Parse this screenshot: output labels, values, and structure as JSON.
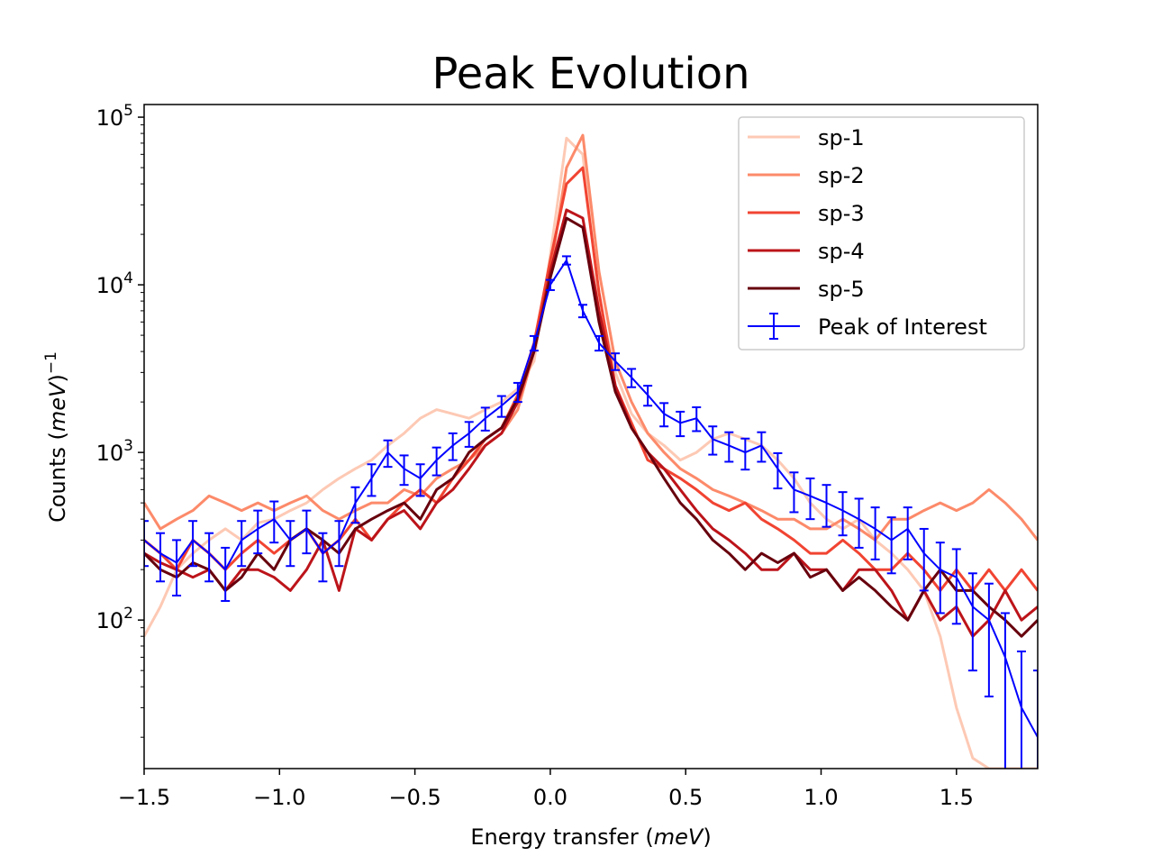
{
  "chart_data": {
    "type": "line",
    "title": "Peak Evolution",
    "xlabel": "Energy transfer (meV)",
    "ylabel": "Counts (meV)^-1",
    "xlim": [
      -1.5,
      1.8
    ],
    "ylim": [
      13,
      119000
    ],
    "yscale": "log",
    "grid": false,
    "legend_placement": "top-right",
    "x_ticks": [
      -1.5,
      -1.0,
      -0.5,
      0.0,
      0.5,
      1.0,
      1.5
    ],
    "x_tick_labels": [
      "−1.5",
      "−1.0",
      "−0.5",
      "0.0",
      "0.5",
      "1.0",
      "1.5"
    ],
    "y_ticks": [
      100,
      1000,
      10000,
      100000
    ],
    "y_tick_labels": [
      {
        "base": "10",
        "exp": "2"
      },
      {
        "base": "10",
        "exp": "3"
      },
      {
        "base": "10",
        "exp": "4"
      },
      {
        "base": "10",
        "exp": "5"
      }
    ],
    "x": [
      -1.5,
      -1.44,
      -1.38,
      -1.32,
      -1.26,
      -1.2,
      -1.14,
      -1.08,
      -1.02,
      -0.96,
      -0.9,
      -0.84,
      -0.78,
      -0.72,
      -0.66,
      -0.6,
      -0.54,
      -0.48,
      -0.42,
      -0.36,
      -0.3,
      -0.24,
      -0.18,
      -0.12,
      -0.06,
      0,
      0.06,
      0.12,
      0.18,
      0.24,
      0.3,
      0.36,
      0.42,
      0.48,
      0.54,
      0.6,
      0.66,
      0.72,
      0.78,
      0.84,
      0.9,
      0.96,
      1.02,
      1.08,
      1.14,
      1.2,
      1.26,
      1.32,
      1.38,
      1.44,
      1.5,
      1.56,
      1.62,
      1.68,
      1.74,
      1.8
    ],
    "series": [
      {
        "name": "sp-1",
        "color": "#fdc9b4",
        "values": [
          80,
          120,
          200,
          250,
          300,
          350,
          300,
          380,
          400,
          450,
          500,
          600,
          700,
          800,
          900,
          1100,
          1300,
          1600,
          1800,
          1700,
          1600,
          1800,
          2000,
          2400,
          3500,
          15000,
          75000,
          60000,
          8000,
          3000,
          1700,
          1300,
          1100,
          900,
          1000,
          1200,
          1300,
          1200,
          1100,
          900,
          700,
          500,
          400,
          350,
          400,
          300,
          250,
          200,
          150,
          80,
          30,
          15,
          12,
          12,
          12,
          12
        ]
      },
      {
        "name": "sp-2",
        "color": "#fc8a6a",
        "values": [
          500,
          350,
          400,
          450,
          550,
          500,
          450,
          500,
          450,
          500,
          550,
          450,
          400,
          450,
          500,
          500,
          600,
          550,
          700,
          800,
          900,
          1100,
          1300,
          1800,
          4000,
          12000,
          50000,
          78000,
          12000,
          3500,
          2000,
          1300,
          1000,
          800,
          700,
          600,
          550,
          500,
          450,
          400,
          400,
          350,
          350,
          400,
          350,
          300,
          400,
          400,
          450,
          500,
          450,
          500,
          600,
          500,
          400,
          300
        ]
      },
      {
        "name": "sp-3",
        "color": "#f14432",
        "values": [
          300,
          250,
          200,
          300,
          250,
          200,
          250,
          300,
          250,
          300,
          350,
          250,
          300,
          400,
          300,
          400,
          500,
          600,
          500,
          700,
          900,
          1200,
          1400,
          2200,
          4500,
          14000,
          40000,
          50000,
          9000,
          2500,
          1500,
          900,
          800,
          700,
          600,
          500,
          450,
          500,
          400,
          350,
          300,
          250,
          250,
          300,
          250,
          200,
          200,
          250,
          200,
          150,
          200,
          150,
          200,
          150,
          200,
          150
        ]
      },
      {
        "name": "sp-4",
        "color": "#bc141a",
        "values": [
          250,
          220,
          200,
          180,
          200,
          150,
          200,
          200,
          180,
          150,
          200,
          300,
          150,
          350,
          300,
          400,
          450,
          350,
          500,
          600,
          800,
          1100,
          1300,
          2000,
          4000,
          12000,
          28000,
          25000,
          7000,
          2500,
          1400,
          1000,
          800,
          600,
          450,
          350,
          300,
          250,
          200,
          200,
          250,
          200,
          200,
          150,
          200,
          200,
          150,
          100,
          150,
          100,
          120,
          80,
          100,
          150,
          100,
          120
        ]
      },
      {
        "name": "sp-5",
        "color": "#67000d",
        "values": [
          250,
          200,
          180,
          220,
          200,
          150,
          180,
          250,
          200,
          300,
          350,
          300,
          250,
          350,
          400,
          450,
          500,
          400,
          600,
          700,
          1000,
          1200,
          1400,
          2100,
          4000,
          11000,
          25000,
          22000,
          6000,
          2300,
          1400,
          1000,
          700,
          500,
          400,
          300,
          250,
          200,
          250,
          220,
          250,
          180,
          200,
          150,
          180,
          150,
          120,
          100,
          150,
          200,
          150,
          150,
          120,
          100,
          80,
          100
        ]
      },
      {
        "name": "Peak of Interest",
        "color": "#0000ff",
        "errorbars": true,
        "values": [
          300,
          250,
          220,
          300,
          250,
          200,
          300,
          350,
          400,
          300,
          350,
          250,
          300,
          500,
          700,
          1000,
          800,
          700,
          900,
          1100,
          1300,
          1600,
          1900,
          2300,
          4500,
          10000,
          14000,
          7000,
          4500,
          3500,
          2800,
          2200,
          1700,
          1500,
          1600,
          1200,
          1100,
          1000,
          1100,
          800,
          600,
          550,
          500,
          450,
          400,
          350,
          300,
          350,
          250,
          200,
          180,
          120,
          100,
          60,
          30,
          20
        ],
        "yerr": [
          90,
          80,
          80,
          90,
          80,
          70,
          90,
          100,
          110,
          90,
          100,
          80,
          90,
          120,
          150,
          180,
          160,
          150,
          170,
          200,
          220,
          250,
          270,
          300,
          450,
          700,
          800,
          600,
          450,
          400,
          350,
          300,
          270,
          250,
          260,
          230,
          220,
          210,
          220,
          190,
          160,
          150,
          140,
          130,
          130,
          120,
          110,
          120,
          100,
          90,
          85,
          70,
          65,
          50,
          35,
          30
        ]
      }
    ]
  }
}
